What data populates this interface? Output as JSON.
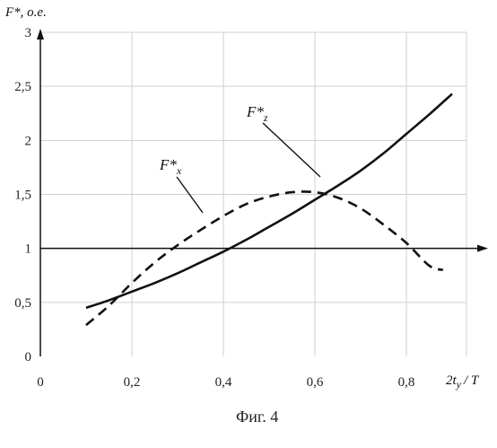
{
  "chart_data": {
    "type": "line",
    "ylabel": "F*, о.е.",
    "xlabel": "2t",
    "xlabel_sub": "y",
    "xlabel_tail": "/ T",
    "caption": "Фиг. 4",
    "xlim": [
      0,
      0.9
    ],
    "ylim": [
      0,
      3
    ],
    "grid": true,
    "x_ticks": [
      {
        "value": 0,
        "label": "0"
      },
      {
        "value": 0.2,
        "label": "0,2"
      },
      {
        "value": 0.4,
        "label": "0,4"
      },
      {
        "value": 0.6,
        "label": "0,6"
      },
      {
        "value": 0.8,
        "label": "0,8"
      }
    ],
    "y_ticks": [
      {
        "value": 0,
        "label": "0"
      },
      {
        "value": 0.5,
        "label": "0,5"
      },
      {
        "value": 1,
        "label": "1"
      },
      {
        "value": 1.5,
        "label": "1,5"
      },
      {
        "value": 2,
        "label": "2"
      },
      {
        "value": 2.5,
        "label": "2,5"
      },
      {
        "value": 3,
        "label": "3"
      }
    ],
    "reference_line_y": 1,
    "series": [
      {
        "name": "F*",
        "name_sub": "z",
        "style": "solid",
        "x": [
          0.1,
          0.15,
          0.2,
          0.25,
          0.3,
          0.35,
          0.4,
          0.45,
          0.5,
          0.55,
          0.6,
          0.65,
          0.7,
          0.75,
          0.8,
          0.85,
          0.9
        ],
        "y": [
          0.45,
          0.52,
          0.6,
          0.68,
          0.77,
          0.87,
          0.97,
          1.08,
          1.2,
          1.32,
          1.45,
          1.58,
          1.72,
          1.88,
          2.06,
          2.24,
          2.43
        ]
      },
      {
        "name": "F*",
        "name_sub": "x",
        "style": "dashed",
        "x": [
          0.1,
          0.15,
          0.2,
          0.25,
          0.3,
          0.35,
          0.4,
          0.45,
          0.5,
          0.55,
          0.6,
          0.65,
          0.7,
          0.75,
          0.8,
          0.85,
          0.88
        ],
        "y": [
          0.29,
          0.47,
          0.68,
          0.87,
          1.03,
          1.17,
          1.3,
          1.41,
          1.48,
          1.52,
          1.52,
          1.47,
          1.37,
          1.22,
          1.05,
          0.84,
          0.8
        ]
      }
    ]
  }
}
